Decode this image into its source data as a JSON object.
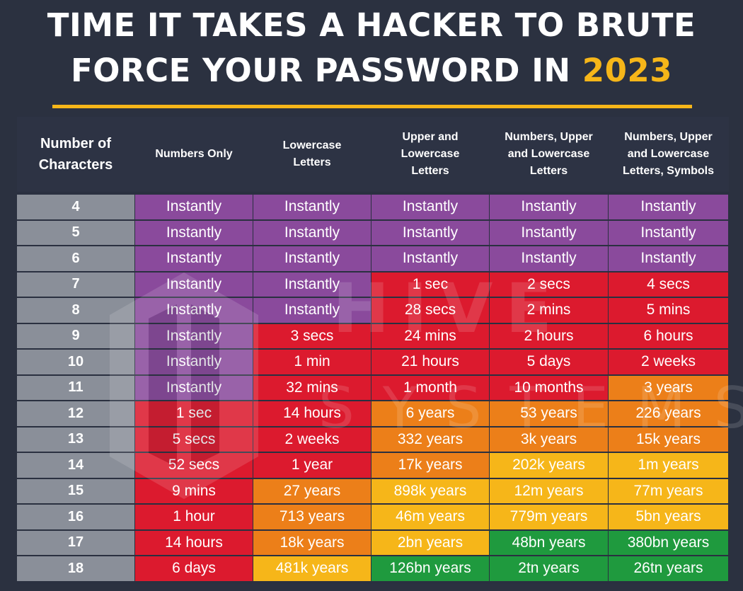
{
  "title": {
    "line1": "TIME IT TAKES A HACKER TO BRUTE",
    "line2_prefix": "FORCE YOUR PASSWORD IN ",
    "year": "2023"
  },
  "watermark": {
    "line1": "HIVE",
    "line2": "SYSTEMS"
  },
  "colors": {
    "background": "#2b3140",
    "accent": "#f6b619",
    "instant": "#8a4a9c",
    "red": "#dc1a2e",
    "orange": "#ec7f19",
    "yellow": "#f6b619",
    "green": "#1f9a3e",
    "char_col": "#8a8f99"
  },
  "table": {
    "headers": [
      [
        "Number of",
        "Characters"
      ],
      [
        "Numbers Only"
      ],
      [
        "Lowercase",
        "Letters"
      ],
      [
        "Upper and",
        "Lowercase",
        "Letters"
      ],
      [
        "Numbers, Upper",
        "and Lowercase",
        "Letters"
      ],
      [
        "Numbers, Upper",
        "and Lowercase",
        "Letters, Symbols"
      ]
    ],
    "rows": [
      {
        "chars": "4",
        "cells": [
          [
            "Instantly",
            "instant"
          ],
          [
            "Instantly",
            "instant"
          ],
          [
            "Instantly",
            "instant"
          ],
          [
            "Instantly",
            "instant"
          ],
          [
            "Instantly",
            "instant"
          ]
        ]
      },
      {
        "chars": "5",
        "cells": [
          [
            "Instantly",
            "instant"
          ],
          [
            "Instantly",
            "instant"
          ],
          [
            "Instantly",
            "instant"
          ],
          [
            "Instantly",
            "instant"
          ],
          [
            "Instantly",
            "instant"
          ]
        ]
      },
      {
        "chars": "6",
        "cells": [
          [
            "Instantly",
            "instant"
          ],
          [
            "Instantly",
            "instant"
          ],
          [
            "Instantly",
            "instant"
          ],
          [
            "Instantly",
            "instant"
          ],
          [
            "Instantly",
            "instant"
          ]
        ]
      },
      {
        "chars": "7",
        "cells": [
          [
            "Instantly",
            "instant"
          ],
          [
            "Instantly",
            "instant"
          ],
          [
            "1 sec",
            "red"
          ],
          [
            "2 secs",
            "red"
          ],
          [
            "4 secs",
            "red"
          ]
        ]
      },
      {
        "chars": "8",
        "cells": [
          [
            "Instantly",
            "instant"
          ],
          [
            "Instantly",
            "instant"
          ],
          [
            "28 secs",
            "red"
          ],
          [
            "2 mins",
            "red"
          ],
          [
            "5 mins",
            "red"
          ]
        ]
      },
      {
        "chars": "9",
        "cells": [
          [
            "Instantly",
            "instant"
          ],
          [
            "3 secs",
            "red"
          ],
          [
            "24 mins",
            "red"
          ],
          [
            "2 hours",
            "red"
          ],
          [
            "6 hours",
            "red"
          ]
        ]
      },
      {
        "chars": "10",
        "cells": [
          [
            "Instantly",
            "instant"
          ],
          [
            "1 min",
            "red"
          ],
          [
            "21 hours",
            "red"
          ],
          [
            "5 days",
            "red"
          ],
          [
            "2 weeks",
            "red"
          ]
        ]
      },
      {
        "chars": "11",
        "cells": [
          [
            "Instantly",
            "instant"
          ],
          [
            "32 mins",
            "red"
          ],
          [
            "1 month",
            "red"
          ],
          [
            "10 months",
            "red"
          ],
          [
            "3 years",
            "orange"
          ]
        ]
      },
      {
        "chars": "12",
        "cells": [
          [
            "1 sec",
            "red"
          ],
          [
            "14 hours",
            "red"
          ],
          [
            "6 years",
            "orange"
          ],
          [
            "53 years",
            "orange"
          ],
          [
            "226 years",
            "orange"
          ]
        ]
      },
      {
        "chars": "13",
        "cells": [
          [
            "5 secs",
            "red"
          ],
          [
            "2 weeks",
            "red"
          ],
          [
            "332 years",
            "orange"
          ],
          [
            "3k years",
            "orange"
          ],
          [
            "15k years",
            "orange"
          ]
        ]
      },
      {
        "chars": "14",
        "cells": [
          [
            "52 secs",
            "red"
          ],
          [
            "1 year",
            "red"
          ],
          [
            "17k years",
            "orange"
          ],
          [
            "202k years",
            "yellow"
          ],
          [
            "1m years",
            "yellow"
          ]
        ]
      },
      {
        "chars": "15",
        "cells": [
          [
            "9 mins",
            "red"
          ],
          [
            "27 years",
            "orange"
          ],
          [
            "898k years",
            "yellow"
          ],
          [
            "12m years",
            "yellow"
          ],
          [
            "77m years",
            "yellow"
          ]
        ]
      },
      {
        "chars": "16",
        "cells": [
          [
            "1 hour",
            "red"
          ],
          [
            "713 years",
            "orange"
          ],
          [
            "46m years",
            "yellow"
          ],
          [
            "779m years",
            "yellow"
          ],
          [
            "5bn years",
            "yellow"
          ]
        ]
      },
      {
        "chars": "17",
        "cells": [
          [
            "14 hours",
            "red"
          ],
          [
            "18k years",
            "orange"
          ],
          [
            "2bn years",
            "yellow"
          ],
          [
            "48bn years",
            "green"
          ],
          [
            "380bn years",
            "green"
          ]
        ]
      },
      {
        "chars": "18",
        "cells": [
          [
            "6 days",
            "red"
          ],
          [
            "481k years",
            "yellow"
          ],
          [
            "126bn years",
            "green"
          ],
          [
            "2tn years",
            "green"
          ],
          [
            "26tn years",
            "green"
          ]
        ]
      }
    ]
  }
}
